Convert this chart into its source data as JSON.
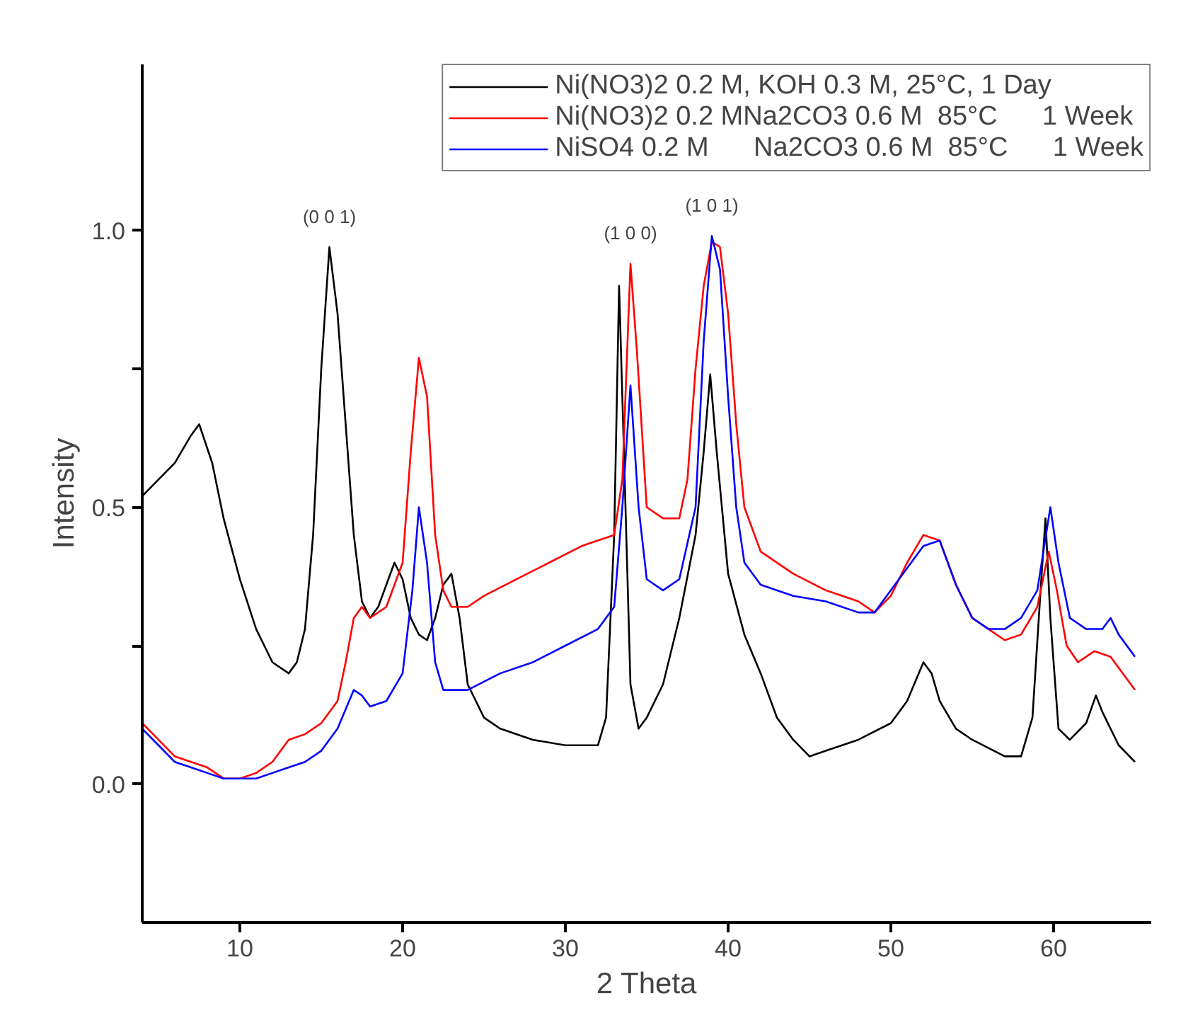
{
  "chart_data": {
    "type": "line",
    "xlabel": "2 Theta",
    "ylabel": "Intensity",
    "xlim": [
      4,
      66
    ],
    "ylim": [
      -0.25,
      1.3
    ],
    "xticks": [
      10,
      20,
      30,
      40,
      50,
      60
    ],
    "yticks": [
      {
        "value": 0,
        "label": "0.0"
      },
      {
        "value": 0.25,
        "label": null
      },
      {
        "value": 0.5,
        "label": "0.5"
      },
      {
        "value": 0.75,
        "label": null
      },
      {
        "value": 1,
        "label": "1.0"
      }
    ],
    "grid": false,
    "legend": "top right",
    "line_style": "solid",
    "marker": "none",
    "annotations": [
      {
        "text": "(0 0 1)",
        "x": 15.5,
        "y": 0.97
      },
      {
        "text": "(1 0 0)",
        "x": 34,
        "y": 0.94
      },
      {
        "text": "(1 0 1)",
        "x": 39,
        "y": 0.99
      }
    ],
    "series": [
      {
        "name": "Ni(NO3)2 0.2 M, KOH 0.3 M, 25°C, 1 Day",
        "color": "#000000",
        "x": [
          4,
          5,
          6,
          7,
          7.5,
          8.3,
          9,
          10,
          11,
          12,
          13,
          13.5,
          14,
          14.5,
          15,
          15.5,
          16,
          16.5,
          17,
          17.5,
          18,
          18.5,
          19,
          19.5,
          20,
          20.5,
          21,
          21.5,
          22,
          22.5,
          23,
          23.5,
          24,
          25,
          26,
          28,
          30,
          32,
          32.5,
          33,
          33.3,
          33.6,
          34,
          34.5,
          35,
          36,
          37,
          38,
          38.5,
          38.9,
          39.3,
          40,
          41,
          42,
          43,
          44,
          45,
          46,
          48,
          50,
          51,
          52,
          52.5,
          53,
          54,
          55,
          57,
          58,
          58.7,
          59.2,
          59.5,
          59.8,
          60.3,
          61,
          62,
          62.6,
          63,
          64,
          65
        ],
        "values": [
          0.52,
          0.55,
          0.58,
          0.63,
          0.65,
          0.58,
          0.48,
          0.37,
          0.28,
          0.22,
          0.2,
          0.22,
          0.28,
          0.45,
          0.75,
          0.97,
          0.85,
          0.65,
          0.45,
          0.33,
          0.3,
          0.32,
          0.36,
          0.4,
          0.37,
          0.3,
          0.27,
          0.26,
          0.3,
          0.36,
          0.38,
          0.3,
          0.18,
          0.12,
          0.1,
          0.08,
          0.07,
          0.07,
          0.12,
          0.45,
          0.9,
          0.6,
          0.18,
          0.1,
          0.12,
          0.18,
          0.3,
          0.45,
          0.6,
          0.74,
          0.6,
          0.38,
          0.27,
          0.2,
          0.12,
          0.08,
          0.05,
          0.06,
          0.08,
          0.11,
          0.15,
          0.22,
          0.2,
          0.15,
          0.1,
          0.08,
          0.05,
          0.05,
          0.12,
          0.35,
          0.48,
          0.3,
          0.1,
          0.08,
          0.11,
          0.16,
          0.13,
          0.07,
          0.04
        ]
      },
      {
        "name": "Ni(NO3)2 0.2 MNa2CO3 0.6 M  85°C      1 Week",
        "color": "#ff0000",
        "x": [
          4,
          5,
          6,
          7,
          8,
          9,
          10,
          11,
          12,
          13,
          14,
          15,
          16,
          16.5,
          17,
          17.5,
          18,
          19,
          20,
          20.5,
          21,
          21.5,
          22,
          22.5,
          23,
          24,
          25,
          27,
          29,
          31,
          33,
          33.5,
          34,
          34.4,
          35,
          36,
          37,
          37.5,
          38,
          38.5,
          39,
          39.5,
          40,
          40.5,
          41,
          42,
          44,
          46,
          48,
          49,
          50,
          51,
          52,
          53,
          54,
          55,
          56,
          57,
          58,
          59,
          59.7,
          60.2,
          60.8,
          61.5,
          62.5,
          63.5,
          64.5,
          65
        ],
        "values": [
          0.11,
          0.08,
          0.05,
          0.04,
          0.03,
          0.01,
          0.01,
          0.02,
          0.04,
          0.08,
          0.09,
          0.11,
          0.15,
          0.22,
          0.3,
          0.32,
          0.3,
          0.32,
          0.4,
          0.6,
          0.77,
          0.7,
          0.45,
          0.35,
          0.32,
          0.32,
          0.34,
          0.37,
          0.4,
          0.43,
          0.45,
          0.55,
          0.94,
          0.78,
          0.5,
          0.48,
          0.48,
          0.55,
          0.75,
          0.9,
          0.98,
          0.97,
          0.85,
          0.65,
          0.5,
          0.42,
          0.38,
          0.35,
          0.33,
          0.31,
          0.34,
          0.4,
          0.45,
          0.44,
          0.36,
          0.3,
          0.28,
          0.26,
          0.27,
          0.32,
          0.42,
          0.35,
          0.25,
          0.22,
          0.24,
          0.23,
          0.19,
          0.17
        ]
      },
      {
        "name": "NiSO4 0.2 M      Na2CO3 0.6 M  85°C      1 Week",
        "color": "#0000ff",
        "x": [
          4,
          5,
          6,
          7,
          8,
          9,
          10,
          11,
          12,
          13,
          14,
          15,
          16,
          17,
          17.5,
          18,
          19,
          20,
          20.6,
          21,
          21.5,
          22,
          22.5,
          24,
          26,
          28,
          30,
          32,
          33,
          33.5,
          34,
          34.5,
          35,
          36,
          37,
          38,
          38.5,
          39,
          39.5,
          40,
          40.5,
          41,
          42,
          44,
          46,
          48,
          49,
          50,
          51,
          52,
          53,
          54,
          55,
          56,
          57,
          58,
          59,
          59.8,
          60.3,
          61,
          62,
          63,
          63.5,
          64,
          65
        ],
        "values": [
          0.1,
          0.07,
          0.04,
          0.03,
          0.02,
          0.01,
          0.01,
          0.01,
          0.02,
          0.03,
          0.04,
          0.06,
          0.1,
          0.17,
          0.16,
          0.14,
          0.15,
          0.2,
          0.35,
          0.5,
          0.4,
          0.22,
          0.17,
          0.17,
          0.2,
          0.22,
          0.25,
          0.28,
          0.32,
          0.5,
          0.72,
          0.5,
          0.37,
          0.35,
          0.37,
          0.5,
          0.8,
          0.99,
          0.93,
          0.7,
          0.5,
          0.4,
          0.36,
          0.34,
          0.33,
          0.31,
          0.31,
          0.35,
          0.39,
          0.43,
          0.44,
          0.36,
          0.3,
          0.28,
          0.28,
          0.3,
          0.35,
          0.5,
          0.4,
          0.3,
          0.28,
          0.28,
          0.3,
          0.27,
          0.23
        ]
      }
    ]
  }
}
